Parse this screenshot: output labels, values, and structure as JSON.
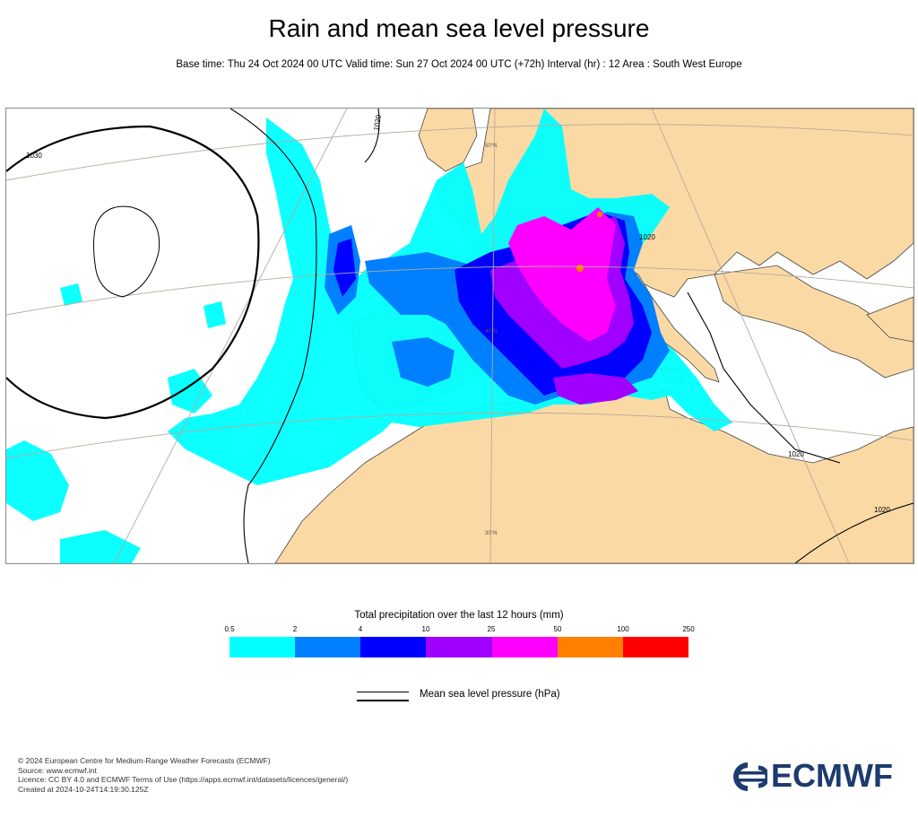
{
  "header": {
    "title": "Rain and mean sea level pressure",
    "subtitle": "Base time: Thu 24 Oct 2024 00 UTC Valid time: Sun 27 Oct 2024 00 UTC (+72h) Interval (hr) : 12 Area : South West Europe"
  },
  "map": {
    "isobar_labels": [
      "1030",
      "1020",
      "1020",
      "1020",
      "1020"
    ],
    "latitude_labels": [
      "50°N",
      "40°N",
      "30°N"
    ],
    "colors": {
      "land": "#fbd9a5",
      "sea": "#ffffff",
      "isobar": "#000000"
    }
  },
  "legend": {
    "title": "Total precipitation over the last 12 hours (mm)",
    "ticks": [
      "0.5",
      "2",
      "4",
      "10",
      "25",
      "50",
      "100",
      "250"
    ],
    "colors": [
      "#00ffff",
      "#0080ff",
      "#0000ff",
      "#9f00ff",
      "#ff00ff",
      "#ff8000",
      "#ff0000"
    ],
    "pressure_label": "Mean sea level pressure (hPa)"
  },
  "footer": {
    "lines": [
      "© 2024 European Centre for Medium-Range Weather Forecasts (ECMWF)",
      "Source: www.ecmwf.int",
      "Licence: CC BY 4.0 and ECMWF Terms of Use (https://apps.ecmwf.int/datasets/licences/general/)",
      "Created at 2024-10-24T14:19:30.125Z"
    ],
    "logo_text": "ECMWF",
    "logo_color": "#1d3b6e"
  }
}
